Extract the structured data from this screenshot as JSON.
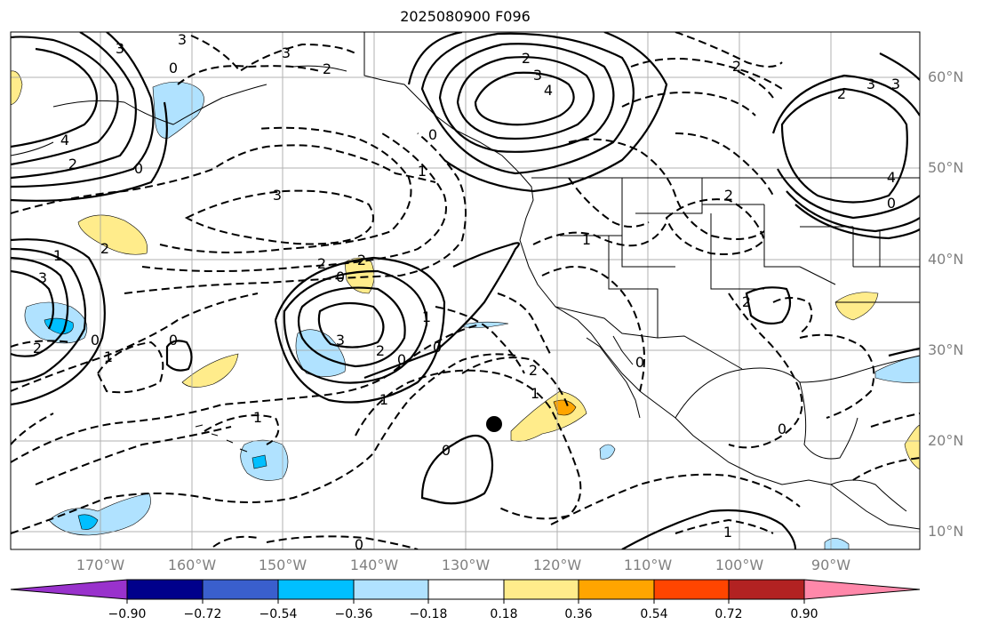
{
  "title": "2025080900 F096",
  "map": {
    "region": "North Pacific / western North America",
    "colors": {
      "coast": "#000000",
      "contour": "#000000",
      "grid": "#a0a0a0",
      "marker": "#000000"
    }
  },
  "lat_labels": [
    "60°N",
    "50°N",
    "40°N",
    "30°N",
    "20°N",
    "10°N"
  ],
  "lon_labels": [
    "170°W",
    "160°W",
    "150°W",
    "140°W",
    "130°W",
    "120°W",
    "110°W",
    "100°W",
    "90°W"
  ],
  "contour_labels": [
    "3",
    "3",
    "2",
    "0",
    "4",
    "2",
    "0",
    "3",
    "2",
    "2",
    "4",
    "3",
    "0",
    "1",
    "3",
    "2",
    "3",
    "0",
    "2",
    "1",
    "3",
    "2",
    "1",
    "0",
    "2",
    "0",
    "1",
    "0",
    "1",
    "0",
    "1",
    "2",
    "0",
    "3",
    "2",
    "4",
    "0",
    "2",
    "3",
    "2",
    "1",
    "0",
    "2",
    "1",
    "0",
    "1",
    "0"
  ],
  "colorbar": {
    "ticks": [
      "−0.90",
      "−0.72",
      "−0.54",
      "−0.36",
      "−0.18",
      "0.18",
      "0.36",
      "0.54",
      "0.72",
      "0.90"
    ],
    "colors": [
      "#9932cc",
      "#00008b",
      "#3a5fcd",
      "#00bfff",
      "#b0e2ff",
      "#ffffff",
      "#ffec8b",
      "#ffa500",
      "#ff4500",
      "#b22222",
      "#ff88aa"
    ]
  }
}
